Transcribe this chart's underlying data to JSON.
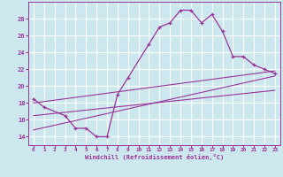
{
  "bg_color": "#cce8ee",
  "grid_color": "#ffffff",
  "line_color": "#993399",
  "xlim": [
    -0.5,
    23.5
  ],
  "ylim": [
    13.0,
    30.0
  ],
  "xticks": [
    0,
    1,
    2,
    3,
    4,
    5,
    6,
    7,
    8,
    9,
    10,
    11,
    12,
    13,
    14,
    15,
    16,
    17,
    18,
    19,
    20,
    21,
    22,
    23
  ],
  "yticks": [
    14,
    16,
    18,
    20,
    22,
    24,
    26,
    28
  ],
  "xlabel": "Windchill (Refroidissement éolien,°C)",
  "curve1_x": [
    0,
    1,
    3,
    4,
    5,
    6,
    7,
    8,
    9,
    11,
    12,
    13,
    14,
    15,
    16,
    17,
    18,
    19,
    20,
    21,
    22,
    23
  ],
  "curve1_y": [
    18.5,
    17.5,
    16.5,
    15.0,
    15.0,
    14.0,
    14.0,
    19.0,
    21.0,
    25.0,
    27.0,
    27.5,
    29.0,
    29.0,
    27.5,
    28.5,
    26.5,
    23.5,
    23.5,
    22.5,
    22.0,
    21.5
  ],
  "line1_x": [
    0,
    23
  ],
  "line1_y": [
    18.0,
    21.8
  ],
  "line2_x": [
    0,
    23
  ],
  "line2_y": [
    14.8,
    21.2
  ],
  "line3_x": [
    0,
    23
  ],
  "line3_y": [
    16.5,
    19.5
  ]
}
